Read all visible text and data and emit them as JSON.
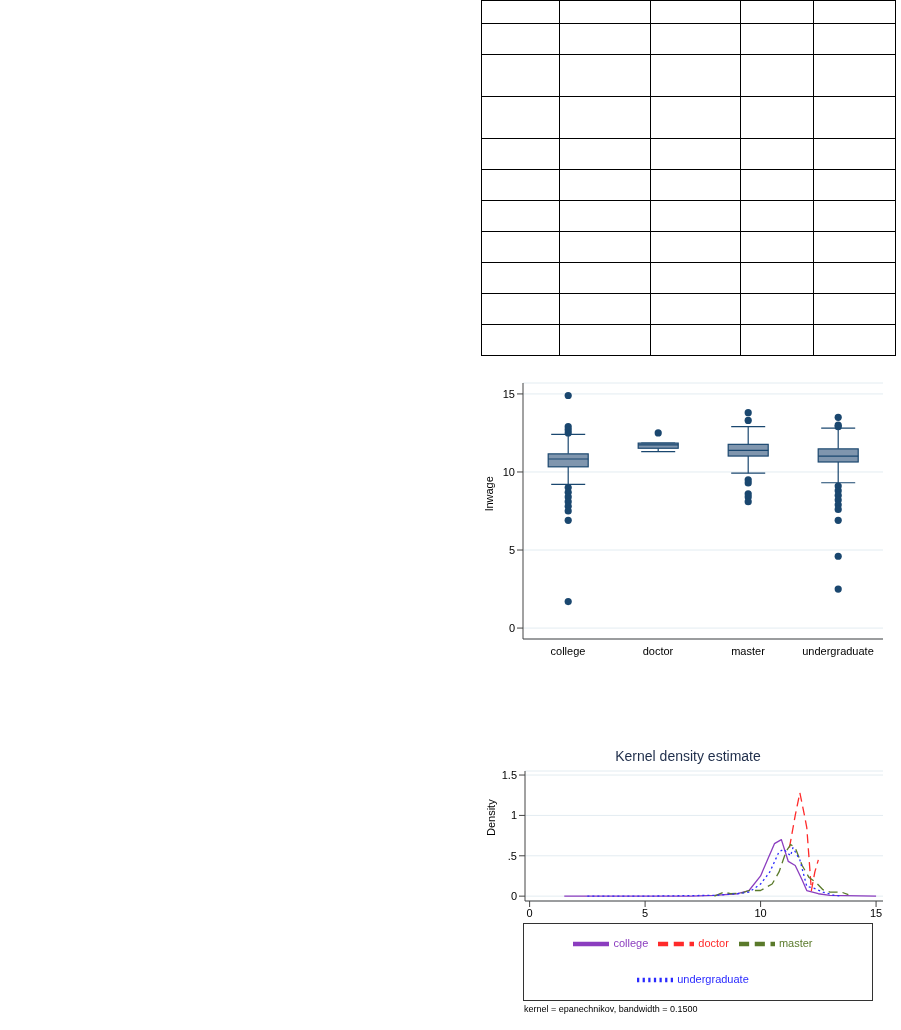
{
  "chart_data": [
    {
      "type": "box",
      "ylabel": "lnwage",
      "categories": [
        "college",
        "doctor",
        "master",
        "undergraduate"
      ],
      "color": "#8096ae",
      "ylim": [
        -0.7,
        15.7
      ],
      "yticks": [
        0,
        5,
        10,
        15
      ],
      "grid": "y",
      "boxes": [
        {
          "low": 9.21,
          "q1": 10.33,
          "median": 10.83,
          "q3": 11.16,
          "high": 12.41,
          "outliers": [
            14.9,
            12.9,
            12.7,
            12.5,
            9.0,
            8.7,
            8.4,
            8.1,
            7.8,
            7.5,
            6.9,
            1.7
          ]
        },
        {
          "low": 11.31,
          "q1": 11.52,
          "median": 11.73,
          "q3": 11.85,
          "high": 11.85,
          "outliers": [
            12.5
          ]
        },
        {
          "low": 9.92,
          "q1": 11.02,
          "median": 11.39,
          "q3": 11.77,
          "high": 12.91,
          "outliers": [
            13.8,
            13.3,
            9.5,
            9.3,
            8.6,
            8.4,
            8.1
          ]
        },
        {
          "low": 9.31,
          "q1": 10.64,
          "median": 11.02,
          "q3": 11.48,
          "high": 12.81,
          "outliers": [
            13.5,
            13.0,
            12.9,
            9.1,
            8.8,
            8.5,
            8.2,
            7.9,
            7.6,
            6.9,
            4.6,
            2.5
          ]
        }
      ]
    },
    {
      "type": "line",
      "title": "Kernel density estimate",
      "ylabel": "Density",
      "xlim": [
        -0.2,
        15.3
      ],
      "xticks": [
        0,
        5,
        10,
        15
      ],
      "ylim": [
        -0.06,
        1.55
      ],
      "yticks": [
        0,
        {
          "value": 0.5,
          "label": ".5"
        },
        1,
        1.5
      ],
      "grid": "y",
      "legend": "bottom",
      "marker": "none",
      "annotations": [
        "kernel = epanechnikov, bandwidth = 0.1500"
      ],
      "series": [
        {
          "name": "college",
          "color": "#8b3dbf",
          "line_style": "solid",
          "x": [
            1.5,
            7,
            8,
            9,
            9.5,
            10,
            10.3,
            10.6,
            10.9,
            11.2,
            11.5,
            11.8,
            12,
            12.5,
            13,
            15
          ],
          "values": [
            0,
            0,
            0.01,
            0.03,
            0.07,
            0.25,
            0.45,
            0.65,
            0.7,
            0.43,
            0.38,
            0.2,
            0.07,
            0.03,
            0.01,
            0
          ]
        },
        {
          "name": "doctor",
          "color": "#ff2a2a",
          "line_style": "dashed",
          "x": [
            11.25,
            11.5,
            11.7,
            11.9,
            12.0,
            12.2,
            12.35,
            12.5
          ],
          "values": [
            0.6,
            1.0,
            1.28,
            1.0,
            0.85,
            0.07,
            0.3,
            0.45
          ]
        },
        {
          "name": "master",
          "color": "#5a7a2b",
          "line_style": "dashed",
          "x": [
            8,
            8.4,
            8.7,
            9.2,
            9.5,
            10,
            10.5,
            10.8,
            11.1,
            11.3,
            11.5,
            11.8,
            12.1,
            12.4,
            12.7,
            13,
            13.5,
            13.8
          ],
          "values": [
            0,
            0.05,
            0.03,
            0.04,
            0.07,
            0.07,
            0.15,
            0.3,
            0.55,
            0.64,
            0.6,
            0.38,
            0.23,
            0.17,
            0.08,
            0.05,
            0.05,
            0.02
          ]
        },
        {
          "name": "undergraduate",
          "color": "#2a2aff",
          "line_style": "dotted",
          "x": [
            2.5,
            5,
            8,
            9,
            9.5,
            10,
            10.4,
            10.8,
            11.0,
            11.3,
            11.4,
            11.7,
            12,
            12.3,
            12.7,
            13.2,
            13.5
          ],
          "values": [
            0,
            0,
            0.01,
            0.03,
            0.05,
            0.15,
            0.3,
            0.55,
            0.58,
            0.5,
            0.6,
            0.45,
            0.12,
            0.1,
            0.05,
            0.01,
            0
          ]
        }
      ]
    }
  ]
}
